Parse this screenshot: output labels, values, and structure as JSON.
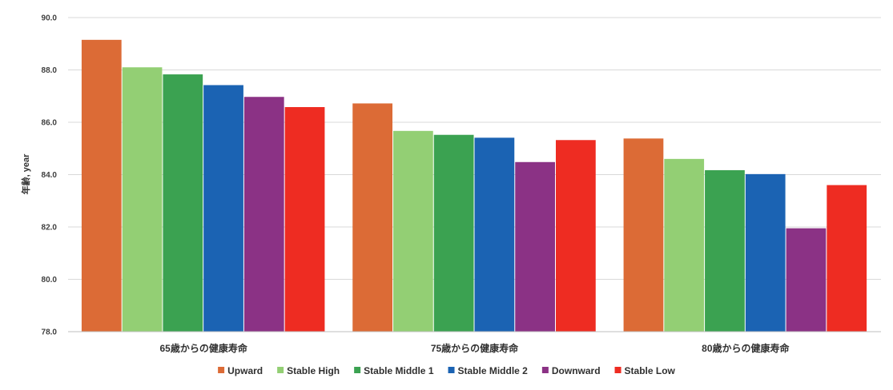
{
  "chart_data": {
    "type": "bar",
    "categories": [
      "65歳からの健康寿命",
      "75歳からの健康寿命",
      "80歳からの健康寿命"
    ],
    "series": [
      {
        "name": "Upward",
        "color": "#DC6B36",
        "values": [
          89.15,
          86.72,
          85.38
        ]
      },
      {
        "name": "Stable High",
        "color": "#93CF74",
        "values": [
          88.1,
          85.67,
          84.6
        ]
      },
      {
        "name": "Stable Middle 1",
        "color": "#3BA251",
        "values": [
          87.83,
          85.52,
          84.17
        ]
      },
      {
        "name": "Stable Middle 2",
        "color": "#1B63B3",
        "values": [
          87.42,
          85.41,
          84.02
        ]
      },
      {
        "name": "Downward",
        "color": "#8B3285",
        "values": [
          86.97,
          84.48,
          81.95
        ]
      },
      {
        "name": "Stable Low",
        "color": "#EE2C22",
        "values": [
          86.58,
          85.32,
          83.6
        ]
      }
    ],
    "ylabel": "年齢, year",
    "ylim": [
      78.0,
      90.0
    ],
    "yticks": [
      "78.0",
      "80.0",
      "82.0",
      "84.0",
      "86.0",
      "88.0",
      "90.0"
    ],
    "grid": true,
    "legend_position": "bottom"
  }
}
